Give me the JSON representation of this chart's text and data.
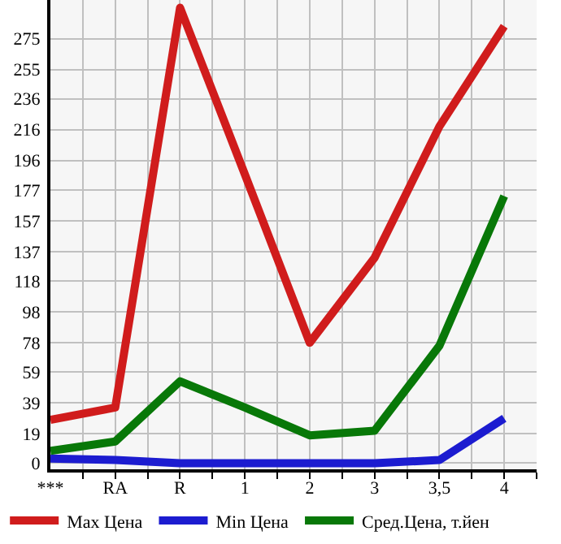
{
  "chart_data": {
    "type": "line",
    "categories": [
      "***",
      "RA",
      "R",
      "1",
      "2",
      "3",
      "3,5",
      "4"
    ],
    "series": [
      {
        "name": "Max Цена",
        "color": "#d01c1c",
        "values": [
          28,
          36,
          295,
          187,
          78,
          133,
          218,
          283
        ]
      },
      {
        "name": "Min Цена",
        "color": "#1c1cd0",
        "values": [
          3,
          2,
          0,
          0,
          0,
          0,
          2,
          29
        ]
      },
      {
        "name": "Сред.Цена, т.йен",
        "color": "#087808",
        "values": [
          8,
          14,
          53,
          36,
          18,
          21,
          76,
          173
        ]
      }
    ],
    "ylim": [
      -4,
      300
    ],
    "yticks": [
      0,
      19,
      39,
      59,
      78,
      98,
      118,
      137,
      157,
      177,
      196,
      216,
      236,
      255,
      275
    ],
    "grid": true,
    "legend": "bottom",
    "marker": "none",
    "line_style": "solid"
  }
}
